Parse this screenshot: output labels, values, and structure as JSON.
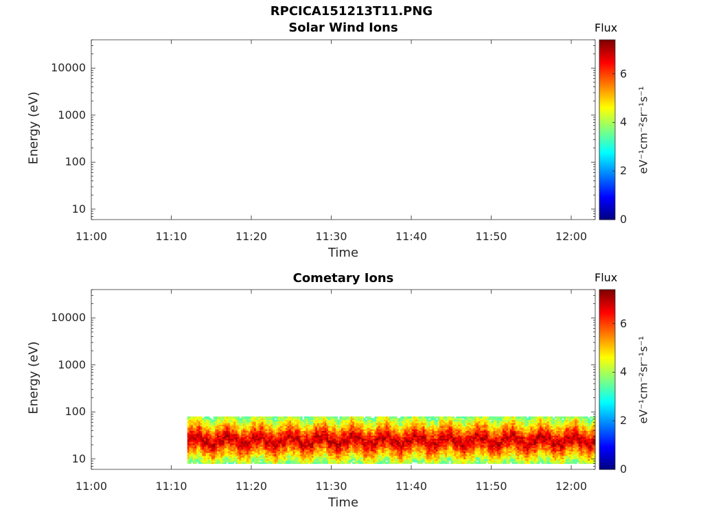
{
  "figure": {
    "title": "RPCICA151213T11.PNG"
  },
  "colors": {
    "colormap": [
      "#00007f",
      "#0000ff",
      "#007fff",
      "#00ffff",
      "#7fff7f",
      "#ffff00",
      "#ff7f00",
      "#ff0000",
      "#7f0000"
    ],
    "axis": "#262626"
  },
  "chart_data": [
    {
      "type": "heatmap",
      "title": "Solar Wind Ions",
      "xlabel": "Time",
      "ylabel": "Energy (eV)",
      "x_ticks": [
        "11:00",
        "11:10",
        "11:20",
        "11:30",
        "11:40",
        "11:50",
        "12:00"
      ],
      "x_range": [
        "11:00",
        "12:03"
      ],
      "y_scale": "log",
      "y_ticks": [
        "10",
        "100",
        "1000",
        "10000"
      ],
      "y_range": [
        6,
        40000
      ],
      "colorbar": {
        "title": "Flux",
        "label": "eV⁻¹cm⁻²sr⁻¹s⁻¹",
        "range": [
          0,
          7.4
        ],
        "ticks": [
          "0",
          "2",
          "4",
          "6"
        ]
      },
      "data": []
    },
    {
      "type": "heatmap",
      "title": "Cometary Ions",
      "xlabel": "Time",
      "ylabel": "Energy (eV)",
      "x_ticks": [
        "11:00",
        "11:10",
        "11:20",
        "11:30",
        "11:40",
        "11:50",
        "12:00"
      ],
      "x_range": [
        "11:00",
        "12:03"
      ],
      "y_scale": "log",
      "y_ticks": [
        "10",
        "100",
        "1000",
        "10000"
      ],
      "y_range": [
        6,
        40000
      ],
      "colorbar": {
        "title": "Flux",
        "label": "eV⁻¹cm⁻²sr⁻¹s⁻¹",
        "range": [
          0,
          7.4
        ],
        "ticks": [
          "0",
          "2",
          "4",
          "6"
        ]
      },
      "data": {
        "time_start": "11:12",
        "time_end": "12:03",
        "energy_min_ev": 8,
        "energy_max_ev": 80,
        "peak_energy_ev": 25,
        "peak_flux": 7.0,
        "notes_visible": ""
      }
    }
  ]
}
